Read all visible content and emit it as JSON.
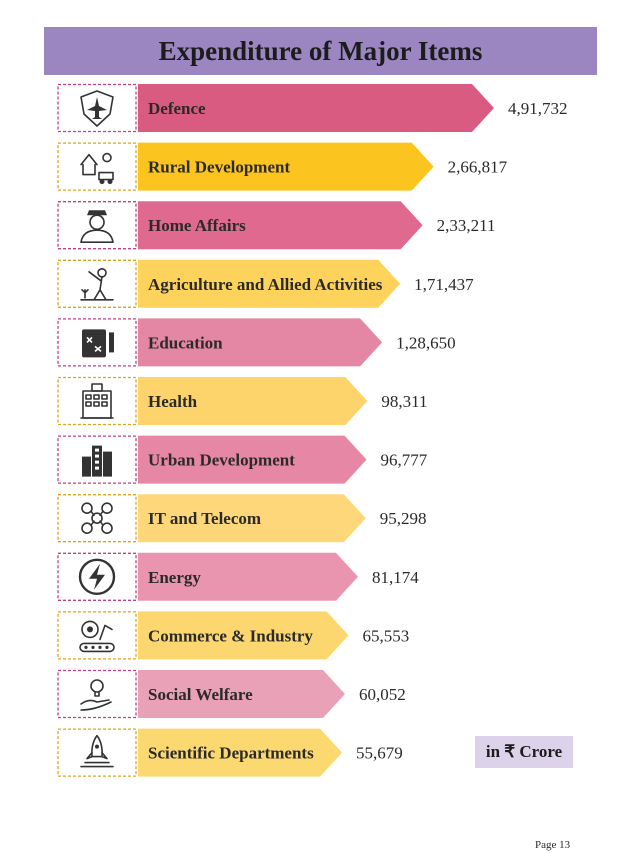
{
  "chart_data": {
    "type": "bar",
    "title": "Expenditure of Major Items",
    "unit": "in ₹ Crore",
    "orientation": "horizontal",
    "categories": [
      "Defence",
      "Rural Development",
      "Home Affairs",
      "Agriculture and Allied Activities",
      "Education",
      "Health",
      "Urban Development",
      "IT and Telecom",
      "Energy",
      "Commerce & Industry",
      "Social Welfare",
      "Scientific Departments"
    ],
    "values": [
      491732,
      266817,
      233211,
      171437,
      128650,
      98311,
      96777,
      95298,
      81174,
      65553,
      60052,
      55679
    ],
    "value_labels": [
      "4,91,732",
      "2,66,817",
      "2,33,211",
      "1,71,437",
      "1,28,650",
      "98,311",
      "96,777",
      "95,298",
      "81,174",
      "65,553",
      "60,052",
      "55,679"
    ],
    "icons": [
      "shield-jet-icon",
      "rural-farm-icon",
      "police-officer-icon",
      "farmer-icon",
      "education-board-icon",
      "hospital-icon",
      "city-buildings-icon",
      "network-people-icon",
      "energy-bolt-icon",
      "industry-gear-icon",
      "helping-hand-bulb-icon",
      "rocket-launch-icon"
    ],
    "colors": [
      "#d95b82",
      "#fcc41f",
      "#e0698f",
      "#fdd35c",
      "#e487a5",
      "#fdd36c",
      "#e687a6",
      "#fdd77a",
      "#e995b0",
      "#fcd770",
      "#e9a1b8",
      "#fcd870"
    ],
    "grid": false,
    "legend": "none"
  },
  "footer": {
    "page": "Page 13"
  }
}
